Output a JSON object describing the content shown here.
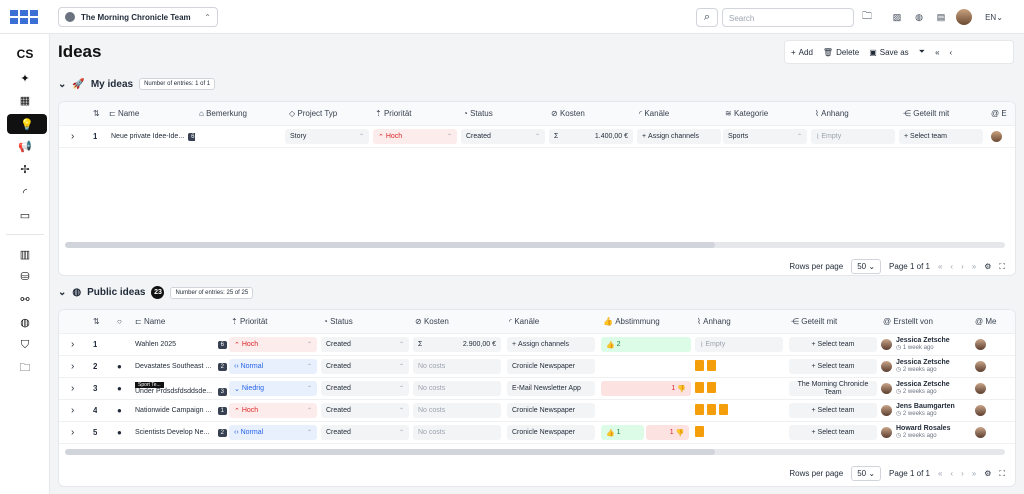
{
  "team": "The Morning Chronicle Team",
  "search_placeholder": "Search",
  "lang": "EN",
  "title": "Ideas",
  "toolbar": {
    "add": "Add",
    "delete": "Delete",
    "save": "Save as"
  },
  "my": {
    "title": "My ideas",
    "count": "Number of entries: 1 of 1",
    "headers": [
      "Name",
      "Bemerkung",
      "Project Typ",
      "Priorität",
      "Status",
      "Kosten",
      "Kanäle",
      "Kategorie",
      "Anhang",
      "Geteilt mit",
      "E"
    ],
    "row": {
      "n": "1",
      "name": "Neue private Idee-Ide...",
      "badge": "6",
      "type": "Story",
      "prio": "Hoch",
      "status": "Created",
      "cost": "1.400,00 €",
      "channels": "Assign channels",
      "cat": "Sports",
      "att": "Empty",
      "shared": "Select team"
    }
  },
  "pub": {
    "title": "Public ideas",
    "circle": "23",
    "count": "Number of entries: 25 of 25",
    "headers": [
      "Name",
      "Priorität",
      "Status",
      "Kosten",
      "Kanäle",
      "Abstimmung",
      "Anhang",
      "Geteilt mit",
      "Erstellt von",
      "Me"
    ],
    "rows": [
      {
        "n": "1",
        "name": "Wahlen 2025",
        "badge": "6",
        "prio": "Hoch",
        "status": "Created",
        "cost": "2.900,00 €",
        "channels": "Assign channels",
        "vote": "2",
        "att": "Empty",
        "shared": "Select team",
        "by": "Jessica Zetsche",
        "when": "1 week ago"
      },
      {
        "n": "2",
        "name": "Devastates Southeast ...",
        "badge": "2",
        "prio": "Normal",
        "status": "Created",
        "cost": "No costs",
        "channels": "Cronicle Newspaper",
        "vote": "",
        "shared": "Select team",
        "by": "Jessica Zetsche",
        "when": "2 weeks ago"
      },
      {
        "n": "3",
        "name": "Under Prdsdsfdsddsde...",
        "badge": "3",
        "tag": "Sport Te...",
        "prio": "Niedrig",
        "status": "Created",
        "cost": "No costs",
        "channels": "E-Mail Newsletter App",
        "vote": "1",
        "shared": "The Morning Chronicle Team",
        "by": "Jessica Zetsche",
        "when": "2 weeks ago"
      },
      {
        "n": "4",
        "name": "Nationwide Campaign ...",
        "badge": "1",
        "prio": "Hoch",
        "status": "Created",
        "cost": "No costs",
        "channels": "Cronicle Newspaper",
        "vote": "",
        "shared": "Select team",
        "by": "Jens Baumgarten",
        "when": "2 weeks ago"
      },
      {
        "n": "5",
        "name": "Scientists Develop Ne...",
        "badge": "2",
        "prio": "Normal",
        "status": "Created",
        "cost": "No costs",
        "channels": "Cronicle Newspaper",
        "vote": "1",
        "vote2": "1",
        "shared": "Select team",
        "by": "Howard Rosales",
        "when": "2 weeks ago"
      }
    ]
  },
  "footer": {
    "rows_label": "Rows per page",
    "rows": "50",
    "page": "Page 1 of 1"
  }
}
